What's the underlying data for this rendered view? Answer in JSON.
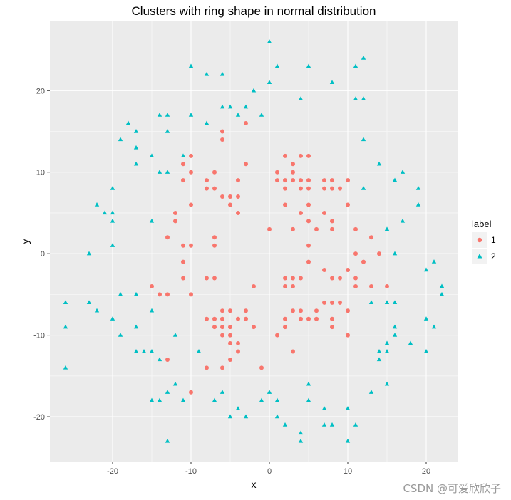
{
  "chart_data": {
    "type": "scatter",
    "title": "Clusters with ring shape in normal distribution",
    "xlabel": "x",
    "ylabel": "y",
    "xlim": [
      -28,
      24
    ],
    "ylim": [
      -25.5,
      28.5
    ],
    "xticks": [
      -20,
      -10,
      0,
      10,
      20
    ],
    "yticks": [
      -20,
      -10,
      0,
      10,
      20
    ],
    "x_tick_labels": [
      "-20",
      "-10",
      "0",
      "10",
      "20"
    ],
    "y_tick_labels": [
      "-20",
      "-10",
      "0",
      "10",
      "20"
    ],
    "grid": true,
    "panel_background": "#ebebeb",
    "legend": {
      "title": "label",
      "placement": "right",
      "entries": [
        {
          "label": "1",
          "shape": "circle",
          "color": "#f8766d"
        },
        {
          "label": "2",
          "shape": "triangle",
          "color": "#00bfc4"
        }
      ]
    },
    "series": [
      {
        "name": "1",
        "shape": "circle",
        "color": "#f8766d",
        "points": [
          [
            -6,
            15
          ],
          [
            -3,
            16
          ],
          [
            -6,
            14
          ],
          [
            -10,
            12
          ],
          [
            -11,
            11
          ],
          [
            -10,
            10
          ],
          [
            -11,
            9
          ],
          [
            -8,
            9
          ],
          [
            -8,
            8
          ],
          [
            -7,
            10
          ],
          [
            -7,
            8
          ],
          [
            -6,
            7
          ],
          [
            -5,
            7
          ],
          [
            -4,
            7
          ],
          [
            -5,
            6
          ],
          [
            -4,
            5
          ],
          [
            -4,
            9
          ],
          [
            -3,
            11
          ],
          [
            -10,
            6
          ],
          [
            -12,
            5
          ],
          [
            -12,
            4
          ],
          [
            -13,
            2
          ],
          [
            -11,
            1
          ],
          [
            -10,
            1
          ],
          [
            -7,
            2
          ],
          [
            -7,
            1
          ],
          [
            2,
            12
          ],
          [
            4,
            12
          ],
          [
            5,
            12
          ],
          [
            1,
            10
          ],
          [
            3,
            11
          ],
          [
            3,
            10
          ],
          [
            1,
            9
          ],
          [
            2,
            9
          ],
          [
            3,
            9
          ],
          [
            4,
            9
          ],
          [
            5,
            9
          ],
          [
            7,
            9
          ],
          [
            8,
            9
          ],
          [
            10,
            9
          ],
          [
            9,
            8
          ],
          [
            2,
            8
          ],
          [
            4,
            8
          ],
          [
            5,
            8
          ],
          [
            7,
            8
          ],
          [
            8,
            8
          ],
          [
            5,
            6
          ],
          [
            2,
            6
          ],
          [
            10,
            6
          ],
          [
            7,
            5
          ],
          [
            4,
            5
          ],
          [
            3,
            3
          ],
          [
            5,
            4
          ],
          [
            6,
            3
          ],
          [
            8,
            4
          ],
          [
            8,
            3
          ],
          [
            11,
            3
          ],
          [
            0,
            3
          ],
          [
            -11,
            -1
          ],
          [
            -11,
            -3
          ],
          [
            -8,
            -3
          ],
          [
            -7,
            -3
          ],
          [
            -10,
            -5
          ],
          [
            -14,
            -5
          ],
          [
            -13,
            -5
          ],
          [
            -15,
            -4
          ],
          [
            -2,
            -4
          ],
          [
            2,
            -3
          ],
          [
            3,
            -3
          ],
          [
            4,
            -3
          ],
          [
            7,
            -2
          ],
          [
            8,
            -3
          ],
          [
            11,
            -3
          ],
          [
            10,
            -2
          ],
          [
            11,
            0
          ],
          [
            12,
            -1
          ],
          [
            14,
            0
          ],
          [
            13,
            2
          ],
          [
            15,
            -4
          ],
          [
            13,
            -4
          ],
          [
            11,
            -4
          ],
          [
            9,
            -3
          ],
          [
            5,
            -1
          ],
          [
            5,
            1
          ],
          [
            2,
            -4
          ],
          [
            3,
            -4
          ],
          [
            -8,
            -8
          ],
          [
            -7,
            -8
          ],
          [
            -6,
            -7
          ],
          [
            -5,
            -7
          ],
          [
            -3,
            -7
          ],
          [
            -3,
            -8
          ],
          [
            -4,
            -8
          ],
          [
            -7,
            -9
          ],
          [
            -6,
            -8
          ],
          [
            -6,
            -9
          ],
          [
            -5,
            -9
          ],
          [
            -5,
            -10
          ],
          [
            -6,
            -10
          ],
          [
            -5,
            -11
          ],
          [
            -2,
            -9
          ],
          [
            -4,
            -11
          ],
          [
            -4,
            -12
          ],
          [
            -5,
            -13
          ],
          [
            -6,
            -14
          ],
          [
            -8,
            -14
          ],
          [
            -13,
            -13
          ],
          [
            -10,
            -17
          ],
          [
            1,
            -10
          ],
          [
            2,
            -9
          ],
          [
            2,
            -8
          ],
          [
            3,
            -7
          ],
          [
            4,
            -7
          ],
          [
            4,
            -8
          ],
          [
            5,
            -8
          ],
          [
            6,
            -8
          ],
          [
            6,
            -7
          ],
          [
            7,
            -6
          ],
          [
            8,
            -6
          ],
          [
            8,
            -8
          ],
          [
            9,
            -6
          ],
          [
            10,
            -7
          ],
          [
            8,
            -9
          ],
          [
            10,
            -10
          ],
          [
            3,
            -12
          ],
          [
            -1,
            -14
          ]
        ]
      },
      {
        "name": "2",
        "shape": "triangle",
        "color": "#00bfc4",
        "points": [
          [
            0,
            26
          ],
          [
            12,
            24
          ],
          [
            -10,
            23
          ],
          [
            1,
            23
          ],
          [
            5,
            23
          ],
          [
            11,
            23
          ],
          [
            -8,
            22
          ],
          [
            -6,
            22
          ],
          [
            0,
            21
          ],
          [
            8,
            21
          ],
          [
            -2,
            20
          ],
          [
            4,
            19
          ],
          [
            11,
            19
          ],
          [
            12,
            19
          ],
          [
            -6,
            18
          ],
          [
            -5,
            18
          ],
          [
            -3,
            18
          ],
          [
            -14,
            17
          ],
          [
            -13,
            17
          ],
          [
            -10,
            17
          ],
          [
            -4,
            17
          ],
          [
            -1,
            17
          ],
          [
            -18,
            16
          ],
          [
            -8,
            16
          ],
          [
            -17,
            15
          ],
          [
            -13,
            15
          ],
          [
            -19,
            14
          ],
          [
            12,
            14
          ],
          [
            -17,
            13
          ],
          [
            -15,
            12
          ],
          [
            -11,
            12
          ],
          [
            -17,
            11
          ],
          [
            14,
            11
          ],
          [
            -14,
            10
          ],
          [
            -13,
            10
          ],
          [
            17,
            10
          ],
          [
            16,
            9
          ],
          [
            -20,
            8
          ],
          [
            12,
            8
          ],
          [
            19,
            8
          ],
          [
            -22,
            6
          ],
          [
            19,
            6
          ],
          [
            -21,
            5
          ],
          [
            -20,
            5
          ],
          [
            -20,
            4
          ],
          [
            -15,
            4
          ],
          [
            17,
            4
          ],
          [
            15,
            3
          ],
          [
            -20,
            1
          ],
          [
            16,
            0
          ],
          [
            -23,
            0
          ],
          [
            21,
            -1
          ],
          [
            20,
            -2
          ],
          [
            22,
            -4
          ],
          [
            22,
            -5
          ],
          [
            -19,
            -5
          ],
          [
            -17,
            -5
          ],
          [
            -26,
            -6
          ],
          [
            -23,
            -6
          ],
          [
            13,
            -6
          ],
          [
            15,
            -6
          ],
          [
            16,
            -6
          ],
          [
            -22,
            -7
          ],
          [
            -15,
            -7
          ],
          [
            -20,
            -8
          ],
          [
            20,
            -8
          ],
          [
            -26,
            -9
          ],
          [
            -17,
            -9
          ],
          [
            16,
            -9
          ],
          [
            21,
            -9
          ],
          [
            -19,
            -10
          ],
          [
            16,
            -10
          ],
          [
            -12,
            -10
          ],
          [
            15,
            -11
          ],
          [
            18,
            -11
          ],
          [
            -17,
            -12
          ],
          [
            -16,
            -12
          ],
          [
            -15,
            -12
          ],
          [
            -9,
            -12
          ],
          [
            14,
            -12
          ],
          [
            15,
            -12
          ],
          [
            20,
            -12
          ],
          [
            -14,
            -13
          ],
          [
            14,
            -13
          ],
          [
            -26,
            -14
          ],
          [
            -12,
            -16
          ],
          [
            5,
            -16
          ],
          [
            15,
            -16
          ],
          [
            -13,
            -17
          ],
          [
            -6,
            -17
          ],
          [
            0,
            -17
          ],
          [
            13,
            -17
          ],
          [
            -15,
            -18
          ],
          [
            -14,
            -18
          ],
          [
            -11,
            -18
          ],
          [
            -7,
            -18
          ],
          [
            -1,
            -18
          ],
          [
            1,
            -18
          ],
          [
            5,
            -18
          ],
          [
            -4,
            -19
          ],
          [
            7,
            -19
          ],
          [
            10,
            -19
          ],
          [
            -5,
            -20
          ],
          [
            -3,
            -20
          ],
          [
            1,
            -20
          ],
          [
            2,
            -21
          ],
          [
            7,
            -21
          ],
          [
            8,
            -21
          ],
          [
            11,
            -21
          ],
          [
            4,
            -22
          ],
          [
            -13,
            -23
          ],
          [
            4,
            -23
          ],
          [
            10,
            -23
          ]
        ]
      }
    ]
  },
  "watermark": {
    "text": "CSDN @可爱欣欣子"
  }
}
